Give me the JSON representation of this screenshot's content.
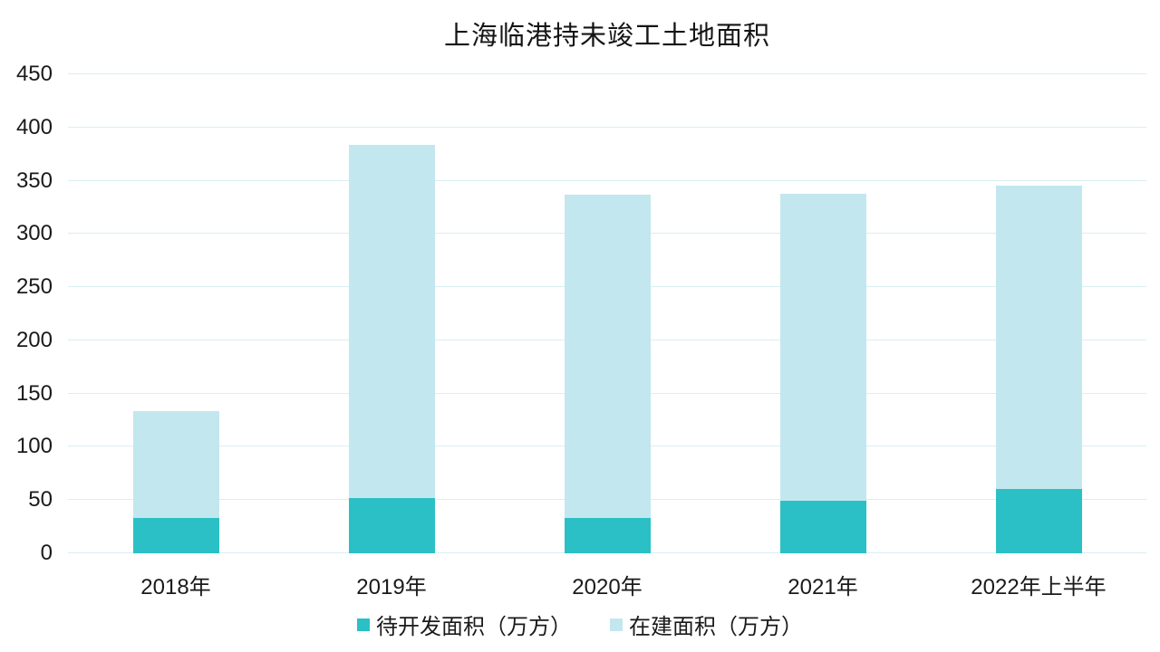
{
  "chart_data": {
    "type": "bar",
    "stacked": true,
    "title": "上海临港持未竣工土地面积",
    "categories": [
      "2018年",
      "2019年",
      "2020年",
      "2021年",
      "2022年上半年"
    ],
    "series": [
      {
        "name": "待开发面积（万方）",
        "color": "#2bc0c5",
        "values": [
          33,
          52,
          33,
          49,
          60
        ]
      },
      {
        "name": "在建面积（万方）",
        "color": "#c3e7ee",
        "values": [
          101,
          332,
          304,
          289,
          285
        ]
      }
    ],
    "totals": [
      134,
      384,
      337,
      338,
      345
    ],
    "xlabel": "",
    "ylabel": "",
    "ylim": [
      0,
      450
    ],
    "ytick_step": 50,
    "yticks": [
      0,
      50,
      100,
      150,
      200,
      250,
      300,
      350,
      400,
      450
    ],
    "grid": true,
    "gridline_color": "#d9eef3",
    "text_color": "#1a1a1a",
    "legend_position": "bottom"
  }
}
